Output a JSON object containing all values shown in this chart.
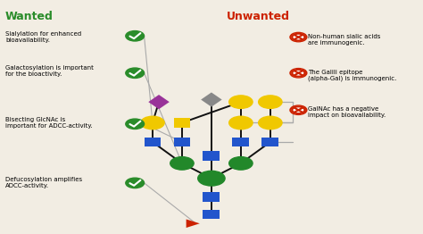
{
  "bg_color": "#f2ede3",
  "title_wanted": "Wanted",
  "title_unwanted": "Unwanted",
  "title_wanted_color": "#2a8c2a",
  "title_unwanted_color": "#cc2200",
  "wanted_labels": [
    "Sialylation for enhanced\nbioavailability.",
    "Galactosylation is important\nfor the bioactivity.",
    "Bisecting GlcNAc is\nimportant for ADCC-activity.",
    "Defucosylation amplifies\nADCC-activity."
  ],
  "unwanted_labels": [
    "Non-human sialic acids\nare immunogenic.",
    "The Galili epitope\n(alpha-Gal) is immunogenic.",
    "GalNAc has a negative\nimpact on bioavailability."
  ],
  "check_color": "#2a8c2a",
  "cross_color": "#cc2200",
  "yellow": "#f0c800",
  "green": "#22882a",
  "blue": "#2255cc",
  "purple": "#993399",
  "gray": "#888888",
  "red": "#cc2200",
  "line_color": "#111111",
  "bracket_color": "#aaaaaa",
  "connector_color": "#aaaaaa"
}
